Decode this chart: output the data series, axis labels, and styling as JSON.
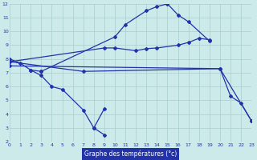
{
  "xlabel": "Graphe des températures (°c)",
  "bg_color": "#cceaea",
  "line_color": "#2233aa",
  "grid_color": "#aacccc",
  "ylim": [
    2,
    12
  ],
  "xlim": [
    0,
    23
  ],
  "yticks": [
    2,
    3,
    4,
    5,
    6,
    7,
    8,
    9,
    10,
    11,
    12
  ],
  "xticks": [
    0,
    1,
    2,
    3,
    4,
    5,
    6,
    7,
    8,
    9,
    10,
    11,
    12,
    13,
    14,
    15,
    16,
    17,
    18,
    19,
    20,
    21,
    22,
    23
  ],
  "segments": [
    {
      "x": [
        0,
        1,
        2,
        3
      ],
      "y": [
        8.0,
        7.7,
        7.2,
        7.1
      ]
    },
    {
      "x": [
        3,
        10,
        11,
        13,
        14,
        15,
        16,
        17,
        19
      ],
      "y": [
        7.1,
        9.6,
        10.5,
        11.5,
        11.8,
        12.0,
        11.2,
        10.7,
        9.3
      ]
    },
    {
      "x": [
        0,
        9,
        10,
        12,
        13,
        14,
        16,
        17,
        18,
        19
      ],
      "y": [
        7.8,
        8.8,
        8.8,
        8.6,
        8.75,
        8.8,
        9.0,
        9.2,
        9.5,
        9.4
      ]
    },
    {
      "x": [
        2,
        3,
        4,
        5,
        7,
        8,
        9
      ],
      "y": [
        7.2,
        6.8,
        6.0,
        5.8,
        4.3,
        3.0,
        2.5
      ]
    },
    {
      "x": [
        8,
        9
      ],
      "y": [
        3.0,
        4.4
      ]
    },
    {
      "x": [
        0,
        7,
        20,
        21,
        22,
        23
      ],
      "y": [
        7.8,
        7.1,
        7.3,
        5.3,
        4.8,
        3.5
      ]
    },
    {
      "x": [
        0,
        20,
        23
      ],
      "y": [
        7.5,
        7.3,
        3.5
      ]
    }
  ]
}
